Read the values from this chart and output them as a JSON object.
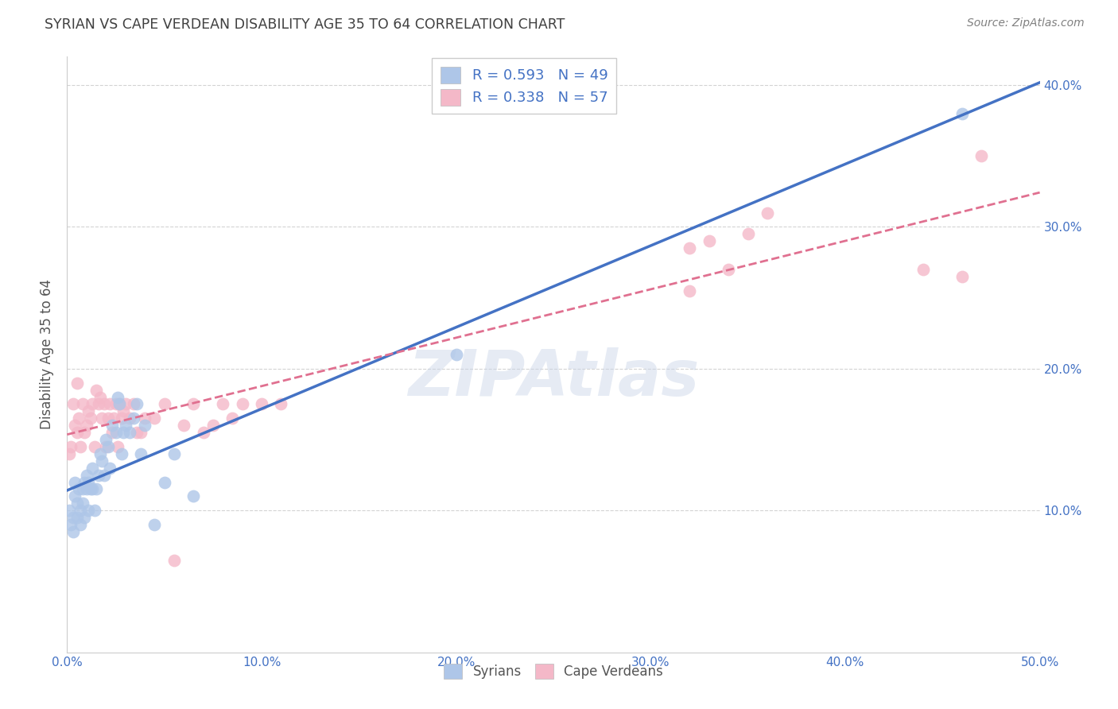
{
  "title": "SYRIAN VS CAPE VERDEAN DISABILITY AGE 35 TO 64 CORRELATION CHART",
  "source": "Source: ZipAtlas.com",
  "ylabel": "Disability Age 35 to 64",
  "watermark": "ZIPAtlas",
  "xmin": 0.0,
  "xmax": 0.5,
  "ymin": 0.0,
  "ymax": 0.42,
  "xticks": [
    0.0,
    0.1,
    0.2,
    0.3,
    0.4,
    0.5
  ],
  "yticks": [
    0.1,
    0.2,
    0.3,
    0.4
  ],
  "xtick_labels": [
    "0.0%",
    "10.0%",
    "20.0%",
    "30.0%",
    "40.0%",
    "50.0%"
  ],
  "ytick_labels_right": [
    "10.0%",
    "20.0%",
    "30.0%",
    "40.0%"
  ],
  "legend_line1": "R = 0.593   N = 49",
  "legend_line2": "R = 0.338   N = 57",
  "scatter_color_syrians": "#aec6e8",
  "scatter_color_capeverdeans": "#f4b8c8",
  "line_color_syrians": "#4472c4",
  "line_color_capeverdeans": "#e07090",
  "background_color": "#ffffff",
  "grid_color": "#c8c8c8",
  "title_color": "#404040",
  "source_color": "#808080",
  "axis_color": "#4472c4",
  "syrians_x": [
    0.001,
    0.002,
    0.003,
    0.003,
    0.004,
    0.004,
    0.005,
    0.005,
    0.006,
    0.007,
    0.007,
    0.008,
    0.008,
    0.009,
    0.009,
    0.01,
    0.01,
    0.011,
    0.011,
    0.012,
    0.013,
    0.013,
    0.014,
    0.015,
    0.016,
    0.017,
    0.018,
    0.019,
    0.02,
    0.021,
    0.022,
    0.023,
    0.025,
    0.026,
    0.027,
    0.028,
    0.029,
    0.03,
    0.032,
    0.034,
    0.036,
    0.038,
    0.04,
    0.045,
    0.05,
    0.055,
    0.065,
    0.2,
    0.46
  ],
  "syrians_y": [
    0.1,
    0.09,
    0.095,
    0.085,
    0.12,
    0.11,
    0.105,
    0.095,
    0.115,
    0.1,
    0.09,
    0.115,
    0.105,
    0.12,
    0.095,
    0.125,
    0.115,
    0.12,
    0.1,
    0.115,
    0.13,
    0.115,
    0.1,
    0.115,
    0.125,
    0.14,
    0.135,
    0.125,
    0.15,
    0.145,
    0.13,
    0.16,
    0.155,
    0.18,
    0.175,
    0.14,
    0.155,
    0.16,
    0.155,
    0.165,
    0.175,
    0.14,
    0.16,
    0.09,
    0.12,
    0.14,
    0.11,
    0.21,
    0.38
  ],
  "capeverdeans_x": [
    0.001,
    0.002,
    0.003,
    0.004,
    0.005,
    0.005,
    0.006,
    0.007,
    0.008,
    0.009,
    0.01,
    0.011,
    0.012,
    0.013,
    0.014,
    0.015,
    0.016,
    0.017,
    0.018,
    0.019,
    0.02,
    0.021,
    0.022,
    0.023,
    0.024,
    0.025,
    0.026,
    0.027,
    0.028,
    0.029,
    0.03,
    0.032,
    0.034,
    0.036,
    0.038,
    0.04,
    0.045,
    0.05,
    0.055,
    0.06,
    0.065,
    0.07,
    0.075,
    0.08,
    0.085,
    0.09,
    0.1,
    0.11,
    0.32,
    0.32,
    0.33,
    0.34,
    0.35,
    0.36,
    0.44,
    0.46,
    0.47
  ],
  "capeverdeans_y": [
    0.14,
    0.145,
    0.175,
    0.16,
    0.155,
    0.19,
    0.165,
    0.145,
    0.175,
    0.155,
    0.16,
    0.17,
    0.165,
    0.175,
    0.145,
    0.185,
    0.175,
    0.18,
    0.165,
    0.175,
    0.145,
    0.165,
    0.175,
    0.155,
    0.165,
    0.175,
    0.145,
    0.175,
    0.165,
    0.17,
    0.175,
    0.165,
    0.175,
    0.155,
    0.155,
    0.165,
    0.165,
    0.175,
    0.065,
    0.16,
    0.175,
    0.155,
    0.16,
    0.175,
    0.165,
    0.175,
    0.175,
    0.175,
    0.255,
    0.285,
    0.29,
    0.27,
    0.295,
    0.31,
    0.27,
    0.265,
    0.35
  ]
}
